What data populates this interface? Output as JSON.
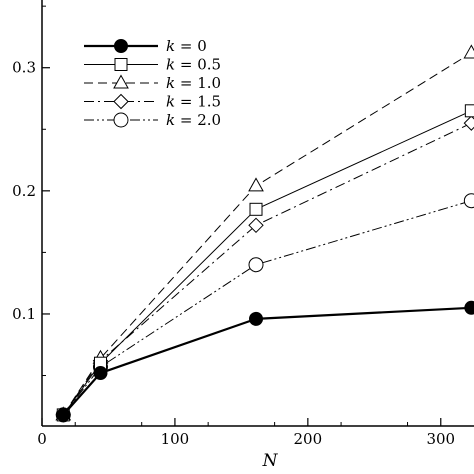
{
  "chart_data": {
    "type": "line",
    "xlabel": "N",
    "ylabel": "",
    "xlim": [
      0,
      325
    ],
    "ylim": [
      0.009,
      0.355
    ],
    "xticks": [
      {
        "value": 0,
        "label": "0"
      },
      {
        "value": 100,
        "label": "100"
      },
      {
        "value": 200,
        "label": "200"
      },
      {
        "value": 300,
        "label": "300"
      }
    ],
    "yticks": [
      {
        "value": 0.1,
        "label": "0.1"
      },
      {
        "value": 0.2,
        "label": "0.2"
      },
      {
        "value": 0.3,
        "label": "0.3"
      }
    ],
    "grid": false,
    "legend_position": "top-left",
    "series": [
      {
        "name": "k = 0",
        "name_var": "k",
        "name_rest": " = 0",
        "marker": "filled-circle",
        "line": "solid-thick",
        "x": [
          16,
          44,
          161,
          323
        ],
        "y": [
          0.018,
          0.052,
          0.096,
          0.105
        ]
      },
      {
        "name": "k = 0.5",
        "name_var": "k",
        "name_rest": " = 0.5",
        "marker": "square",
        "line": "solid-thin",
        "x": [
          16,
          44,
          161,
          323
        ],
        "y": [
          0.018,
          0.06,
          0.185,
          0.265
        ]
      },
      {
        "name": "k = 1.0",
        "name_var": "k",
        "name_rest": " = 1.0",
        "marker": "triangle",
        "line": "dashed",
        "x": [
          16,
          44,
          161,
          323
        ],
        "y": [
          0.018,
          0.064,
          0.204,
          0.312
        ]
      },
      {
        "name": "k = 1.5",
        "name_var": "k",
        "name_rest": " = 1.5",
        "marker": "diamond",
        "line": "dash-dot",
        "x": [
          16,
          44,
          161,
          323
        ],
        "y": [
          0.018,
          0.062,
          0.172,
          0.255
        ]
      },
      {
        "name": "k = 2.0",
        "name_var": "k",
        "name_rest": " = 2.0",
        "marker": "circle",
        "line": "dash-dot-dot",
        "x": [
          16,
          44,
          161,
          323
        ],
        "y": [
          0.018,
          0.057,
          0.14,
          0.192
        ]
      }
    ]
  }
}
